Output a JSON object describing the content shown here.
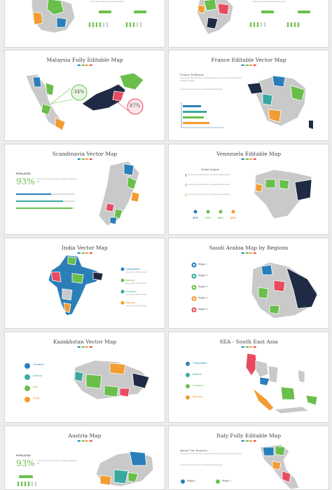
{
  "colors": {
    "blue": "#2a7fb8",
    "green": "#6abf4b",
    "orange": "#f39c32",
    "red": "#e84a5f",
    "navy": "#1f2a44",
    "gray": "#c9c9c9",
    "teal": "#3aa8a0"
  },
  "slides": {
    "malaysia": {
      "title": "Malaysia Fully Editable Map",
      "pct_a": "34%",
      "pct_b": "87%"
    },
    "france": {
      "title": "France Editable Vector Map",
      "subtitle": "France Pollution"
    },
    "scandinavia": {
      "title": "Scandinavia Vector Map",
      "label": "POPULATION",
      "value": "93%"
    },
    "venezuela": {
      "title": "Venezuela Editable Map",
      "subtitle": "Market Analysis",
      "stats": [
        "37%",
        "47%",
        "86%",
        "86%"
      ]
    },
    "india": {
      "title": "India Vector Map",
      "items": [
        "Transportation",
        "Business",
        "Commerce",
        "Marketing"
      ]
    },
    "saudi": {
      "title": "Saudi Arabia Map by Regions",
      "regions": [
        "Region 1",
        "Region 2",
        "Region 3",
        "Region 4",
        "Region 5"
      ]
    },
    "kazakhstan": {
      "title": "Kazakhstan Vector Map",
      "items": [
        "Commerce",
        "Business",
        "Data",
        "Design"
      ]
    },
    "sea": {
      "title": "SEA - South East Asia",
      "items": [
        "Transportation",
        "Business",
        "Commerce",
        "Marketing"
      ]
    },
    "austria": {
      "title": "Austria Map",
      "label": "POPULATION",
      "value": "93%"
    },
    "italy": {
      "title": "Italy Fully Editable Map",
      "subtitle": "About Our Projects",
      "regions": [
        "Region 1",
        "Region 2"
      ]
    }
  }
}
